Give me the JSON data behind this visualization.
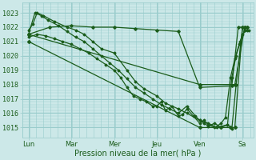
{
  "bg_color": "#cce8e8",
  "grid_color": "#99cccc",
  "line_color": "#1a5c1a",
  "ylim": [
    1014.3,
    1023.7
  ],
  "xlim": [
    -0.15,
    5.25
  ],
  "xlabel": "Pression niveau de la mer( hPa )",
  "xtick_labels": [
    "Lun",
    "Mar",
    "Mer",
    "Jeu",
    "Ven",
    "Sa"
  ],
  "xtick_positions": [
    0,
    1,
    2,
    3,
    4,
    5
  ],
  "ylabel_ticks": [
    1015,
    1016,
    1017,
    1018,
    1019,
    1020,
    1021,
    1022,
    1023
  ],
  "label_fontsize": 7,
  "tick_fontsize": 6,
  "lines": [
    {
      "x": [
        0.0,
        0.5,
        1.0,
        1.5,
        2.0,
        2.5,
        3.0,
        3.5,
        4.0,
        4.75,
        4.9,
        5.05
      ],
      "y": [
        1021.5,
        1022.0,
        1022.1,
        1022.0,
        1022.0,
        1021.9,
        1021.8,
        1021.7,
        1017.8,
        1017.9,
        1022.0,
        1022.0
      ],
      "marker": "D",
      "ms": 1.8,
      "lw": 0.9
    },
    {
      "x": [
        0.0,
        0.15,
        0.3,
        0.45,
        0.7,
        0.9,
        1.1,
        1.3,
        1.5,
        1.7,
        1.9,
        2.1,
        2.3,
        2.5,
        2.7,
        2.9,
        3.1,
        3.3,
        3.5,
        3.7,
        3.9,
        4.0,
        4.1,
        4.2,
        4.35,
        4.5,
        4.65,
        4.75,
        4.85,
        4.95,
        5.05,
        5.15
      ],
      "y": [
        1021.5,
        1023.0,
        1022.8,
        1022.5,
        1022.1,
        1021.7,
        1021.3,
        1021.0,
        1020.5,
        1020.0,
        1019.5,
        1019.0,
        1018.4,
        1017.8,
        1017.4,
        1017.0,
        1016.6,
        1016.3,
        1016.0,
        1016.5,
        1015.8,
        1015.5,
        1015.3,
        1015.1,
        1015.3,
        1015.0,
        1015.2,
        1018.5,
        1020.0,
        1021.0,
        1021.8,
        1021.8
      ],
      "marker": "D",
      "ms": 1.5,
      "lw": 0.9
    },
    {
      "x": [
        0.0,
        0.1,
        0.2,
        0.35,
        0.6,
        0.9,
        1.1,
        1.3,
        1.5,
        1.7,
        2.0,
        2.3,
        2.5,
        2.7,
        3.0,
        3.2,
        3.5,
        3.7,
        4.0,
        4.2,
        4.4,
        4.65,
        4.75,
        4.85,
        5.0,
        5.1
      ],
      "y": [
        1021.8,
        1022.2,
        1023.0,
        1022.8,
        1022.4,
        1022.0,
        1021.8,
        1021.5,
        1021.0,
        1020.5,
        1020.2,
        1019.0,
        1018.2,
        1017.7,
        1017.2,
        1016.7,
        1016.3,
        1016.0,
        1015.5,
        1015.3,
        1015.0,
        1015.2,
        1014.9,
        1018.0,
        1022.0,
        1022.0
      ],
      "marker": "D",
      "ms": 1.5,
      "lw": 0.9
    },
    {
      "x": [
        0.0,
        0.2,
        0.4,
        0.6,
        0.8,
        1.0,
        1.2,
        1.4,
        1.6,
        1.8,
        2.0,
        2.15,
        2.3,
        2.45,
        2.6,
        2.75,
        2.9,
        3.0,
        3.1,
        3.2,
        3.35,
        3.5,
        3.6,
        3.7,
        3.85,
        4.0,
        4.1,
        4.2,
        4.35,
        4.5,
        4.6,
        4.72,
        4.82,
        4.92,
        5.0,
        5.1
      ],
      "y": [
        1021.3,
        1021.5,
        1021.4,
        1021.2,
        1021.0,
        1020.8,
        1020.5,
        1020.2,
        1019.8,
        1019.4,
        1019.0,
        1018.5,
        1017.8,
        1017.2,
        1017.0,
        1016.8,
        1016.5,
        1016.5,
        1016.8,
        1016.2,
        1016.5,
        1015.8,
        1015.9,
        1016.3,
        1015.8,
        1015.3,
        1015.5,
        1015.2,
        1015.0,
        1015.3,
        1015.7,
        1018.5,
        1019.8,
        1020.8,
        1021.5,
        1021.8
      ],
      "marker": "D",
      "ms": 1.5,
      "lw": 0.9
    },
    {
      "x": [
        0.0,
        4.0,
        4.82,
        5.05
      ],
      "y": [
        1021.5,
        1018.0,
        1018.0,
        1022.0
      ],
      "marker": "D",
      "ms": 2.0,
      "lw": 0.9
    },
    {
      "x": [
        0.0,
        4.0,
        4.5,
        4.72,
        4.82,
        5.0,
        5.1
      ],
      "y": [
        1021.0,
        1015.0,
        1015.0,
        1015.0,
        1015.0,
        1022.0,
        1022.0
      ],
      "marker": "D",
      "ms": 2.0,
      "lw": 0.9
    }
  ]
}
